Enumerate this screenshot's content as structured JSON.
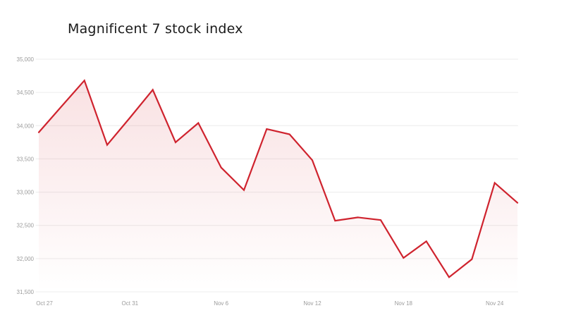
{
  "chart_data": {
    "type": "line",
    "title": "Magnificent 7 stock index",
    "series": [
      {
        "name": "Magnificent 7 stock index",
        "values": [
          33900,
          34290,
          34680,
          33710,
          34120,
          34540,
          33750,
          34040,
          33370,
          33030,
          33950,
          33870,
          33480,
          32570,
          32620,
          32580,
          32010,
          32260,
          31720,
          31990,
          33140,
          32840
        ]
      }
    ],
    "x": [
      "Oct 27",
      "Oct 28",
      "Oct 29",
      "Oct 30",
      "Oct 31",
      "Nov 3",
      "Nov 4",
      "Nov 5",
      "Nov 6",
      "Nov 7",
      "Nov 10",
      "Nov 11",
      "Nov 12",
      "Nov 13",
      "Nov 14",
      "Nov 17",
      "Nov 18",
      "Nov 19",
      "Nov 20",
      "Nov 21",
      "Nov 24",
      "Nov 25"
    ],
    "xlabel": "",
    "ylabel": "",
    "ylim": [
      31500,
      35000
    ],
    "y_ticks": [
      35000,
      34500,
      34000,
      33500,
      33000,
      32500,
      32000,
      31500
    ],
    "x_tick_labels": [
      "Oct 27",
      "Oct 31",
      "Nov 6",
      "Nov 12",
      "Nov 18",
      "Nov 24"
    ],
    "x_tick_indices": [
      0,
      4,
      8,
      12,
      16,
      20
    ],
    "grid": "horizontal",
    "legend": "none",
    "area_fill": true,
    "colors": {
      "line": "#cf232e",
      "area_top": "#d2242e",
      "area_top_opacity": 0.15,
      "area_bottom_opacity": 0,
      "grid": "#ececec",
      "tick_label": "#9b9b9b",
      "title": "#1a1a1a",
      "background": "#ffffff"
    }
  }
}
